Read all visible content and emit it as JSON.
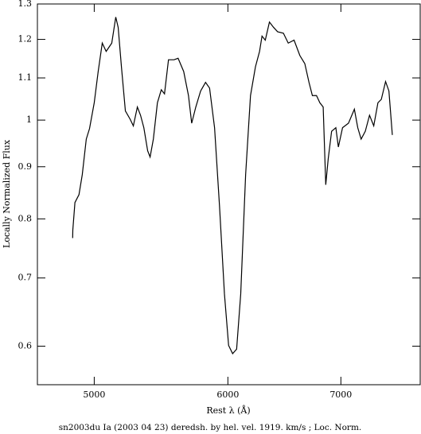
{
  "chart_data": {
    "type": "line",
    "xlabel": "Rest λ (Å)",
    "ylabel": "Locally Normalized Flux",
    "caption": "sn2003du Ia (2003 04 23) deredsh. by hel. vel.  1919. km/s ;  Loc. Norm.",
    "color": "#000000",
    "xlog": true,
    "ylog": true,
    "xlim": [
      4627,
      7800
    ],
    "ylim": [
      0.55,
      1.3
    ],
    "xticks": [
      5000,
      6000,
      7000
    ],
    "yticks": [
      0.6,
      0.7,
      0.8,
      0.9,
      1,
      1.1,
      1.2,
      1.3
    ],
    "x": [
      4855,
      4856,
      4870,
      4897,
      4919,
      4946,
      4968,
      5000,
      5027,
      5055,
      5082,
      5121,
      5149,
      5166,
      5189,
      5217,
      5251,
      5274,
      5303,
      5326,
      5350,
      5378,
      5396,
      5420,
      5450,
      5479,
      5503,
      5533,
      5575,
      5606,
      5649,
      5686,
      5711,
      5743,
      5781,
      5820,
      5852,
      5892,
      5932,
      5972,
      6006,
      6039,
      6072,
      6106,
      6147,
      6188,
      6230,
      6265,
      6286,
      6314,
      6350,
      6386,
      6421,
      6472,
      6515,
      6567,
      6619,
      6664,
      6702,
      6733,
      6771,
      6802,
      6833,
      6857,
      6880,
      6912,
      6952,
      6976,
      7016,
      7073,
      7130,
      7163,
      7196,
      7237,
      7279,
      7321,
      7363,
      7397,
      7440,
      7474,
      7509
    ],
    "values": [
      0.766,
      0.78,
      0.83,
      0.845,
      0.884,
      0.958,
      0.981,
      1.04,
      1.116,
      1.19,
      1.168,
      1.19,
      1.262,
      1.233,
      1.128,
      1.021,
      1.002,
      0.987,
      1.03,
      1.011,
      0.983,
      0.933,
      0.92,
      0.958,
      1.04,
      1.071,
      1.061,
      1.146,
      1.146,
      1.15,
      1.116,
      1.057,
      0.993,
      1.03,
      1.068,
      1.089,
      1.075,
      0.983,
      0.823,
      0.675,
      0.601,
      0.59,
      0.596,
      0.675,
      0.884,
      1.057,
      1.128,
      1.168,
      1.209,
      1.198,
      1.248,
      1.233,
      1.221,
      1.217,
      1.19,
      1.198,
      1.157,
      1.136,
      1.089,
      1.057,
      1.057,
      1.04,
      1.03,
      0.864,
      0.916,
      0.975,
      0.983,
      0.941,
      0.983,
      0.993,
      1.025,
      0.983,
      0.958,
      0.975,
      1.011,
      0.987,
      1.04,
      1.048,
      1.091,
      1.068,
      0.967
    ]
  }
}
